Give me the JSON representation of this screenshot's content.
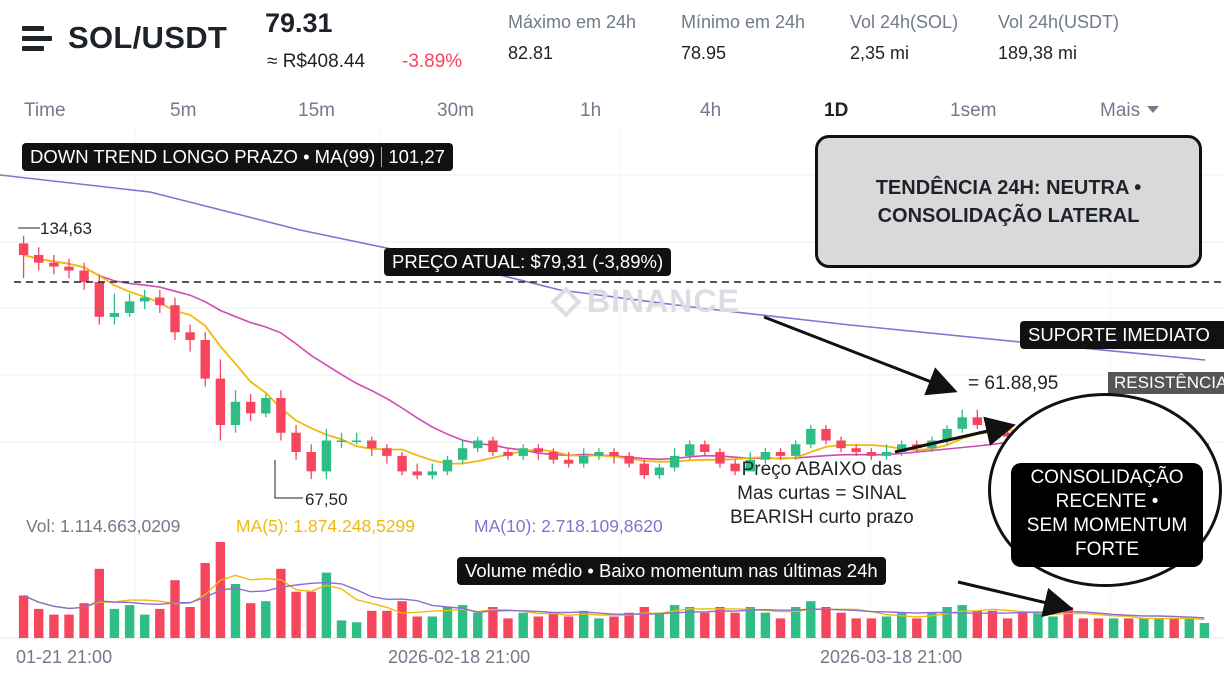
{
  "header": {
    "pair": "SOL/USDT",
    "price": "79.31",
    "price_brl": "≈ R$408.44",
    "change": "-3.89%",
    "stats": [
      {
        "label": "Máximo em 24h",
        "value": "82.81"
      },
      {
        "label": "Mínimo em 24h",
        "value": "78.95"
      },
      {
        "label": "Vol 24h(SOL)",
        "value": "2,35 mi"
      },
      {
        "label": "Vol 24h(USDT)",
        "value": "189,38 mi"
      }
    ]
  },
  "tabs": [
    {
      "label": "Time"
    },
    {
      "label": "5m"
    },
    {
      "label": "15m"
    },
    {
      "label": "30m"
    },
    {
      "label": "1h"
    },
    {
      "label": "4h"
    },
    {
      "label": "1D",
      "active": true
    },
    {
      "label": "1sem"
    },
    {
      "label": "Mais"
    }
  ],
  "annotations": {
    "ma99_label": "DOWN TREND LONGO PRAZO • MA(99)",
    "ma99_value": "101,27",
    "trend_box": "TENDÊNCIA 24H: NEUTRA • CONSOLIDAÇÃO LATERAL",
    "price_now": "PREÇO ATUAL: $79,31 (-3,89%)",
    "support": "SUPORTE IMEDIATO",
    "resistance": "RESISTÊNCIA",
    "marker_value": "= 61.88,95",
    "below_ma_note": "Preço ABAIXO das\nMas curtas = SINAL\nBEARISH curto prazo",
    "consolidation": "CONSOLIDAÇÃO\nRECENTE  •\nSEM MOMENTUM\nFORTE",
    "volume_note": "Volume médio  • Baixo momentum nas últimas 24h",
    "high_marker": "134,63",
    "low_marker": "67,50",
    "watermark": "BINANCE"
  },
  "volume_legend": {
    "vol": "Vol: 1.114.663,0209",
    "ma5": "MA(5): 1.874.248,5299",
    "ma10": "MA(10): 2.718.109,8620"
  },
  "x_axis": [
    "01-21 21:00",
    "2026-02-18 21:00",
    "2026-03-18 21:00"
  ],
  "colors": {
    "up": "#2ebd85",
    "down": "#f6465d",
    "ma_short": "#f0b90b",
    "ma_mid": "#d147b5",
    "ma_long": "#8a6fd0"
  },
  "chart_data": {
    "type": "candlestick",
    "symbol": "SOL/USDT",
    "interval": "1D",
    "x_labels": [
      "01-21 21:00",
      "2026-02-18 21:00",
      "2026-03-18 21:00"
    ],
    "marked_high": 134.63,
    "marked_low": 67.5,
    "current_price": 79.31,
    "price_range": [
      62,
      150
    ],
    "ohlc": [
      [
        131,
        128,
        133,
        122
      ],
      [
        128,
        126,
        130,
        124
      ],
      [
        126,
        125,
        128,
        123
      ],
      [
        125,
        124,
        127,
        122
      ],
      [
        124,
        121,
        126,
        119
      ],
      [
        121,
        112,
        123,
        110
      ],
      [
        112,
        113,
        118,
        110
      ],
      [
        113,
        116,
        118,
        112
      ],
      [
        116,
        117,
        119,
        114
      ],
      [
        117,
        115,
        119,
        113
      ],
      [
        115,
        108,
        117,
        106
      ],
      [
        108,
        106,
        110,
        103
      ],
      [
        106,
        96,
        108,
        94
      ],
      [
        96,
        84,
        101,
        80
      ],
      [
        84,
        90,
        93,
        82
      ],
      [
        90,
        87,
        92,
        85
      ],
      [
        87,
        91,
        92,
        86
      ],
      [
        91,
        82,
        93,
        80
      ],
      [
        82,
        77,
        84,
        75
      ],
      [
        77,
        72,
        79,
        70
      ],
      [
        72,
        80,
        83,
        70
      ],
      [
        80,
        80,
        82,
        78
      ],
      [
        80,
        80,
        82,
        79
      ],
      [
        80,
        78,
        81,
        76
      ],
      [
        78,
        76,
        79,
        74
      ],
      [
        76,
        72,
        77,
        71
      ],
      [
        72,
        71,
        74,
        70
      ],
      [
        71,
        72,
        74,
        70
      ],
      [
        72,
        75,
        76,
        71
      ],
      [
        75,
        78,
        80,
        74
      ],
      [
        78,
        80,
        81,
        77
      ],
      [
        80,
        77,
        81,
        76
      ],
      [
        77,
        76,
        78,
        75
      ],
      [
        76,
        78,
        79,
        75
      ],
      [
        78,
        77,
        79,
        75
      ],
      [
        77,
        75,
        78,
        74
      ],
      [
        75,
        74,
        77,
        73
      ],
      [
        74,
        76,
        78,
        73
      ],
      [
        76,
        77,
        78,
        75
      ],
      [
        77,
        76,
        78,
        74
      ],
      [
        76,
        74,
        77,
        73
      ],
      [
        74,
        71,
        75,
        70
      ],
      [
        71,
        73,
        74,
        70
      ],
      [
        73,
        76,
        78,
        72
      ],
      [
        76,
        79,
        80,
        75
      ],
      [
        79,
        77,
        80,
        76
      ],
      [
        77,
        74,
        78,
        73
      ],
      [
        74,
        72,
        75,
        71
      ],
      [
        72,
        75,
        77,
        72
      ],
      [
        75,
        77,
        78,
        74
      ],
      [
        77,
        76,
        78,
        75
      ],
      [
        76,
        79,
        80,
        75
      ],
      [
        79,
        83,
        84,
        78
      ],
      [
        83,
        80,
        84,
        79
      ],
      [
        80,
        78,
        81,
        77
      ],
      [
        78,
        77,
        79,
        76
      ],
      [
        77,
        76,
        78,
        75
      ],
      [
        76,
        77,
        79,
        75
      ],
      [
        77,
        79,
        80,
        76
      ],
      [
        79,
        78,
        80,
        77
      ],
      [
        78,
        80,
        81,
        77
      ],
      [
        80,
        83,
        84,
        79
      ],
      [
        83,
        86,
        88,
        82
      ],
      [
        86,
        84,
        88,
        83
      ],
      [
        84,
        82,
        85,
        80
      ],
      [
        82,
        81,
        83,
        80
      ],
      [
        81,
        79,
        82,
        78
      ],
      [
        79,
        81,
        82,
        78
      ],
      [
        81,
        82,
        83,
        79
      ],
      [
        82,
        79,
        83,
        78
      ],
      [
        79,
        78,
        80,
        77
      ],
      [
        78,
        77,
        79,
        76
      ],
      [
        77,
        78,
        79,
        76
      ],
      [
        78,
        77,
        79,
        76
      ],
      [
        77,
        78,
        79,
        76
      ],
      [
        78,
        79,
        80,
        77
      ],
      [
        79,
        78,
        80,
        77
      ],
      [
        78,
        79,
        80,
        77
      ],
      [
        79,
        79.3,
        80,
        78
      ]
    ],
    "series": [
      {
        "name": "MA(99)",
        "value_last": 101.27
      }
    ]
  }
}
